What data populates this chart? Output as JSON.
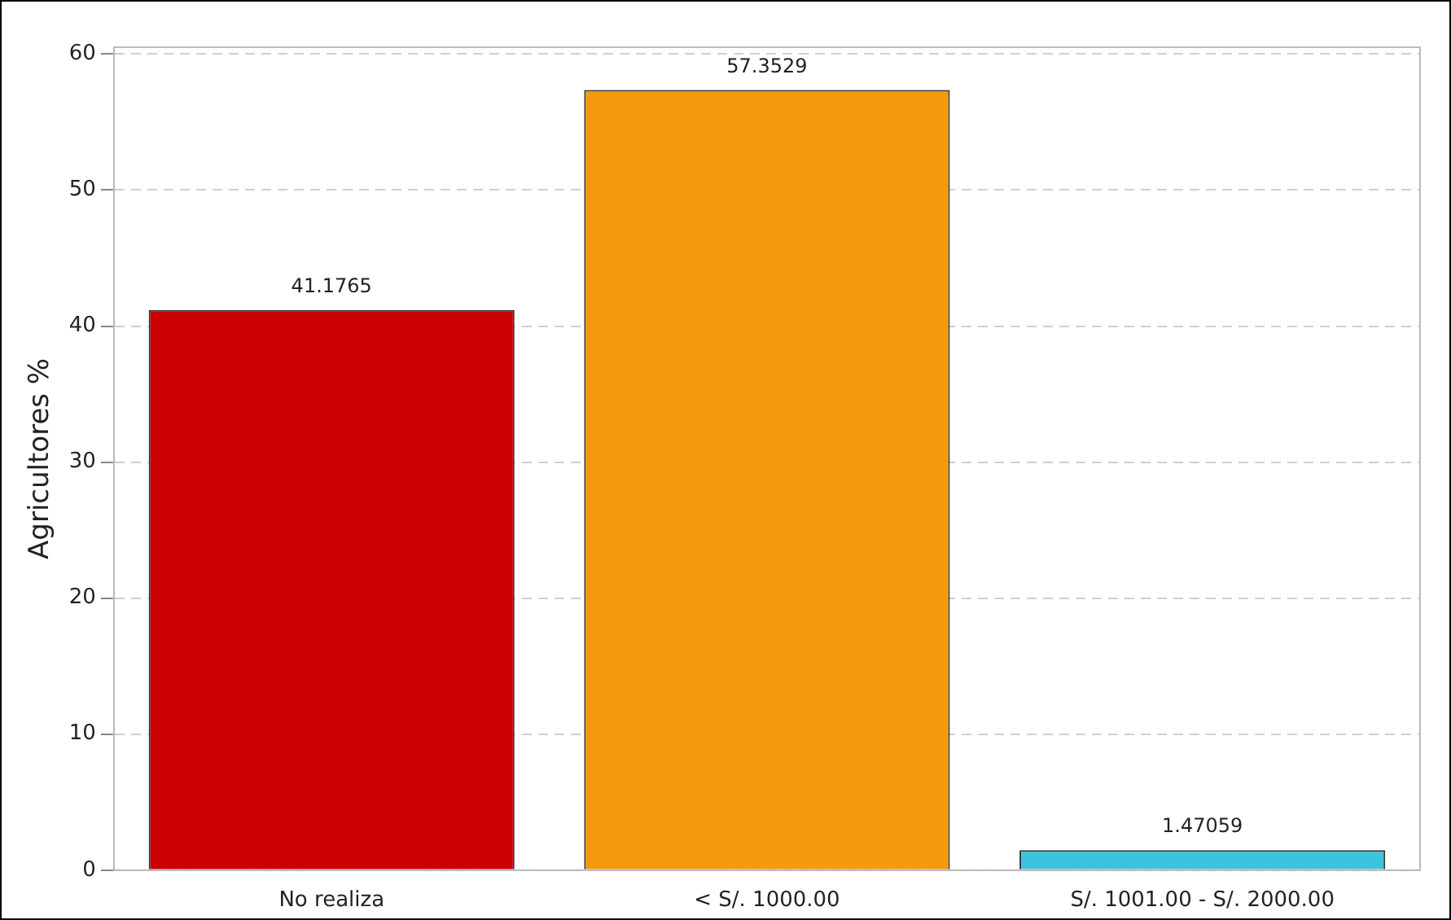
{
  "chart_data": {
    "type": "bar",
    "ylabel": "Agricultores %",
    "categories": [
      "No realiza",
      "< S/. 1000.00",
      "S/. 1001.00 - S/. 2000.00"
    ],
    "values": [
      41.1765,
      57.3529,
      1.47059
    ],
    "colors": [
      "#cc0000",
      "#f7990c",
      "#3bc4dc"
    ],
    "ylim": [
      0,
      60.5
    ],
    "yticks": [
      0,
      10,
      20,
      30,
      40,
      50,
      60
    ],
    "grid": "y",
    "data_labels": true,
    "legend": false
  }
}
